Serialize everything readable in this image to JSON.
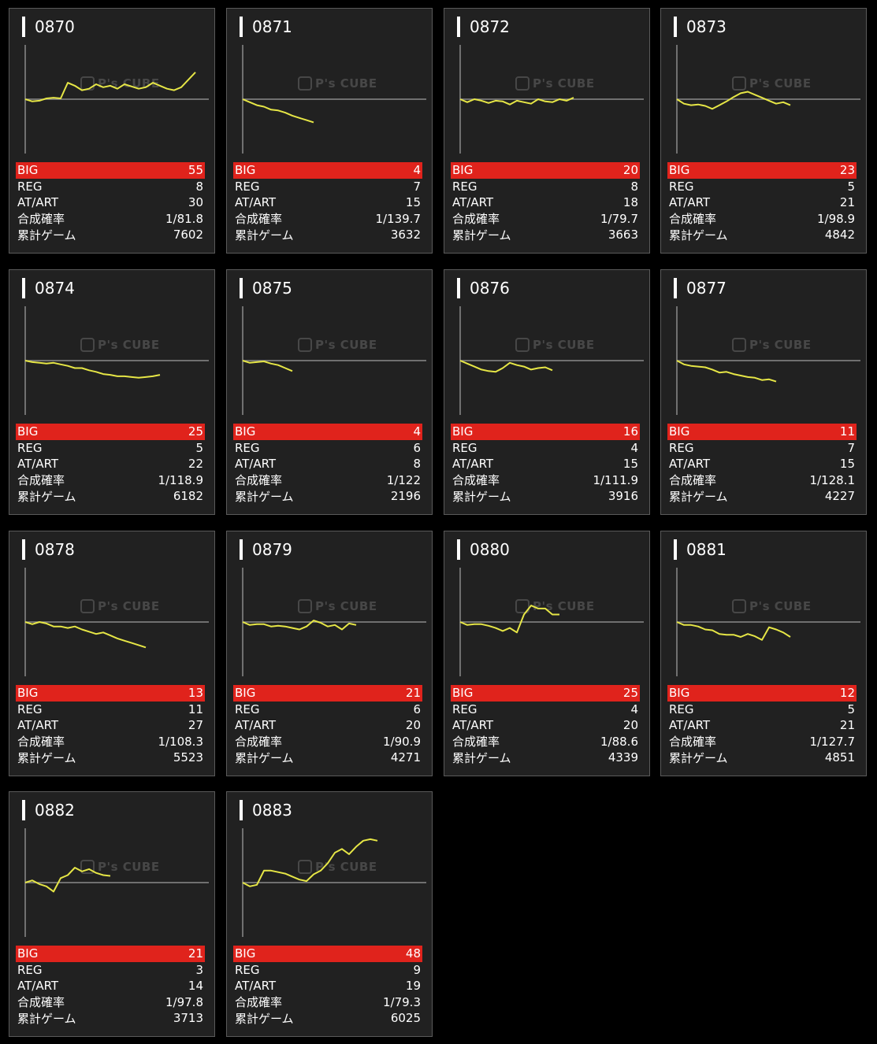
{
  "colors": {
    "background": "#000000",
    "card": "#212121",
    "big_bar": "#e0231c",
    "line": "#e6e646",
    "baseline": "#8a8a8a"
  },
  "watermark": {
    "text": "P's CUBE",
    "icon": "cube-logo-icon"
  },
  "labels": {
    "big": "BIG",
    "reg": "REG",
    "at": "AT/ART",
    "prob": "合成確率",
    "games": "累計ゲーム"
  },
  "machines": [
    {
      "id": "0870",
      "big": "55",
      "reg": "8",
      "at": "30",
      "prob": "1/81.8",
      "games": "7602",
      "trend": [
        0,
        -3,
        -2,
        1,
        2,
        1,
        22,
        18,
        12,
        14,
        20,
        16,
        18,
        14,
        20,
        17,
        14,
        16,
        22,
        18,
        14,
        12,
        16,
        26,
        36
      ]
    },
    {
      "id": "0871",
      "big": "4",
      "reg": "7",
      "at": "15",
      "prob": "1/139.7",
      "games": "3632",
      "trend": [
        0,
        -4,
        -8,
        -10,
        -14,
        -15,
        -18,
        -22,
        -25,
        -28,
        -31
      ]
    },
    {
      "id": "0872",
      "big": "20",
      "reg": "8",
      "at": "18",
      "prob": "1/79.7",
      "games": "3663",
      "trend": [
        0,
        -4,
        0,
        -2,
        -5,
        -2,
        -3,
        -7,
        -2,
        -4,
        -6,
        0,
        -3,
        -4,
        0,
        -2,
        2
      ]
    },
    {
      "id": "0873",
      "big": "23",
      "reg": "5",
      "at": "21",
      "prob": "1/98.9",
      "games": "4842",
      "trend": [
        0,
        -6,
        -8,
        -7,
        -9,
        -13,
        -8,
        -3,
        3,
        8,
        10,
        6,
        2,
        -2,
        -6,
        -4,
        -8
      ]
    },
    {
      "id": "0874",
      "big": "25",
      "reg": "5",
      "at": "22",
      "prob": "1/118.9",
      "games": "6182",
      "trend": [
        0,
        -2,
        -3,
        -4,
        -3,
        -5,
        -7,
        -10,
        -10,
        -13,
        -15,
        -18,
        -19,
        -21,
        -21,
        -22,
        -23,
        -22,
        -21,
        -19
      ]
    },
    {
      "id": "0875",
      "big": "4",
      "reg": "6",
      "at": "8",
      "prob": "1/122",
      "games": "2196",
      "trend": [
        0,
        -3,
        -2,
        -1,
        -4,
        -6,
        -10,
        -14
      ]
    },
    {
      "id": "0876",
      "big": "16",
      "reg": "4",
      "at": "15",
      "prob": "1/111.9",
      "games": "3916",
      "trend": [
        0,
        -4,
        -8,
        -12,
        -14,
        -15,
        -10,
        -3,
        -6,
        -8,
        -12,
        -10,
        -9,
        -13
      ]
    },
    {
      "id": "0877",
      "big": "11",
      "reg": "7",
      "at": "15",
      "prob": "1/128.1",
      "games": "4227",
      "trend": [
        0,
        -5,
        -7,
        -8,
        -9,
        -12,
        -16,
        -15,
        -18,
        -20,
        -22,
        -23,
        -26,
        -25,
        -28
      ]
    },
    {
      "id": "0878",
      "big": "13",
      "reg": "11",
      "at": "27",
      "prob": "1/108.3",
      "games": "5523",
      "trend": [
        0,
        -3,
        0,
        -2,
        -6,
        -6,
        -8,
        -6,
        -10,
        -13,
        -16,
        -14,
        -18,
        -22,
        -25,
        -28,
        -31,
        -34
      ]
    },
    {
      "id": "0879",
      "big": "21",
      "reg": "6",
      "at": "20",
      "prob": "1/90.9",
      "games": "4271",
      "trend": [
        0,
        -4,
        -3,
        -3,
        -6,
        -5,
        -6,
        -8,
        -10,
        -6,
        2,
        -1,
        -6,
        -4,
        -10,
        -2,
        -4
      ]
    },
    {
      "id": "0880",
      "big": "25",
      "reg": "4",
      "at": "20",
      "prob": "1/88.6",
      "games": "4339",
      "trend": [
        0,
        -4,
        -3,
        -3,
        -5,
        -8,
        -12,
        -8,
        -14,
        10,
        22,
        18,
        18,
        10,
        10
      ]
    },
    {
      "id": "0881",
      "big": "12",
      "reg": "5",
      "at": "21",
      "prob": "1/127.7",
      "games": "4851",
      "trend": [
        0,
        -4,
        -4,
        -6,
        -10,
        -11,
        -16,
        -17,
        -17,
        -20,
        -16,
        -19,
        -24,
        -7,
        -10,
        -14,
        -20
      ]
    },
    {
      "id": "0882",
      "big": "21",
      "reg": "3",
      "at": "14",
      "prob": "1/97.8",
      "games": "3713",
      "trend": [
        0,
        3,
        -2,
        -5,
        -12,
        6,
        10,
        20,
        15,
        18,
        13,
        10,
        9
      ]
    },
    {
      "id": "0883",
      "big": "48",
      "reg": "9",
      "at": "19",
      "prob": "1/79.3",
      "games": "6025",
      "trend": [
        0,
        -5,
        -3,
        16,
        16,
        14,
        12,
        8,
        4,
        2,
        11,
        16,
        26,
        40,
        45,
        38,
        48,
        56,
        58,
        56
      ]
    }
  ]
}
